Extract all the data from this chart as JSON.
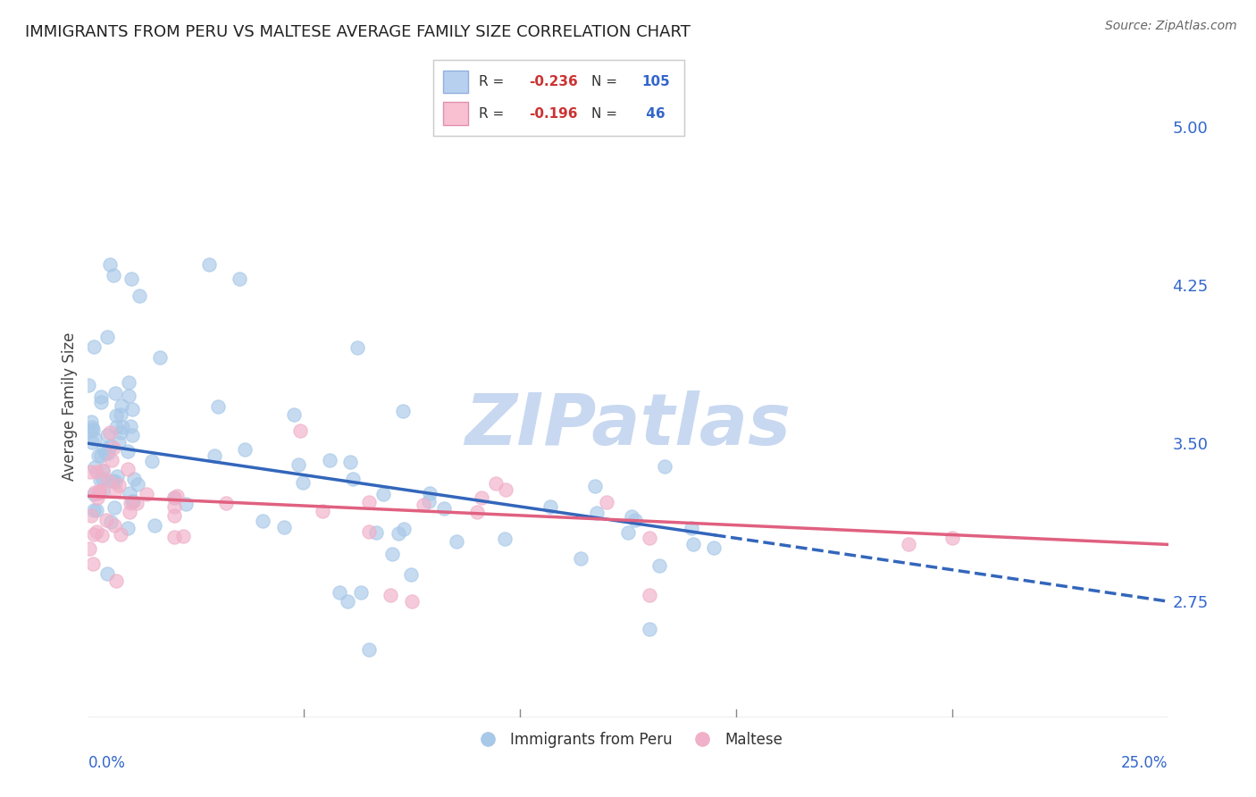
{
  "title": "IMMIGRANTS FROM PERU VS MALTESE AVERAGE FAMILY SIZE CORRELATION CHART",
  "source": "Source: ZipAtlas.com",
  "ylabel": "Average Family Size",
  "right_yticks": [
    2.75,
    3.5,
    4.25,
    5.0
  ],
  "xlim": [
    0.0,
    0.25
  ],
  "ylim": [
    2.2,
    5.15
  ],
  "legend_label_blue": "Immigrants from Peru",
  "legend_label_pink": "Maltese",
  "peru_dot_color": "#a8c8e8",
  "maltese_dot_color": "#f0b0c8",
  "peru_line_color": "#3366bb",
  "maltese_line_color": "#e06080",
  "watermark": "ZIPatlas",
  "watermark_color": "#c8d8f0",
  "background_color": "#ffffff",
  "grid_color": "#cccccc",
  "title_color": "#222222",
  "right_axis_color": "#3366cc",
  "legend_R_color": "#cc0000",
  "legend_N_color": "#3366cc"
}
